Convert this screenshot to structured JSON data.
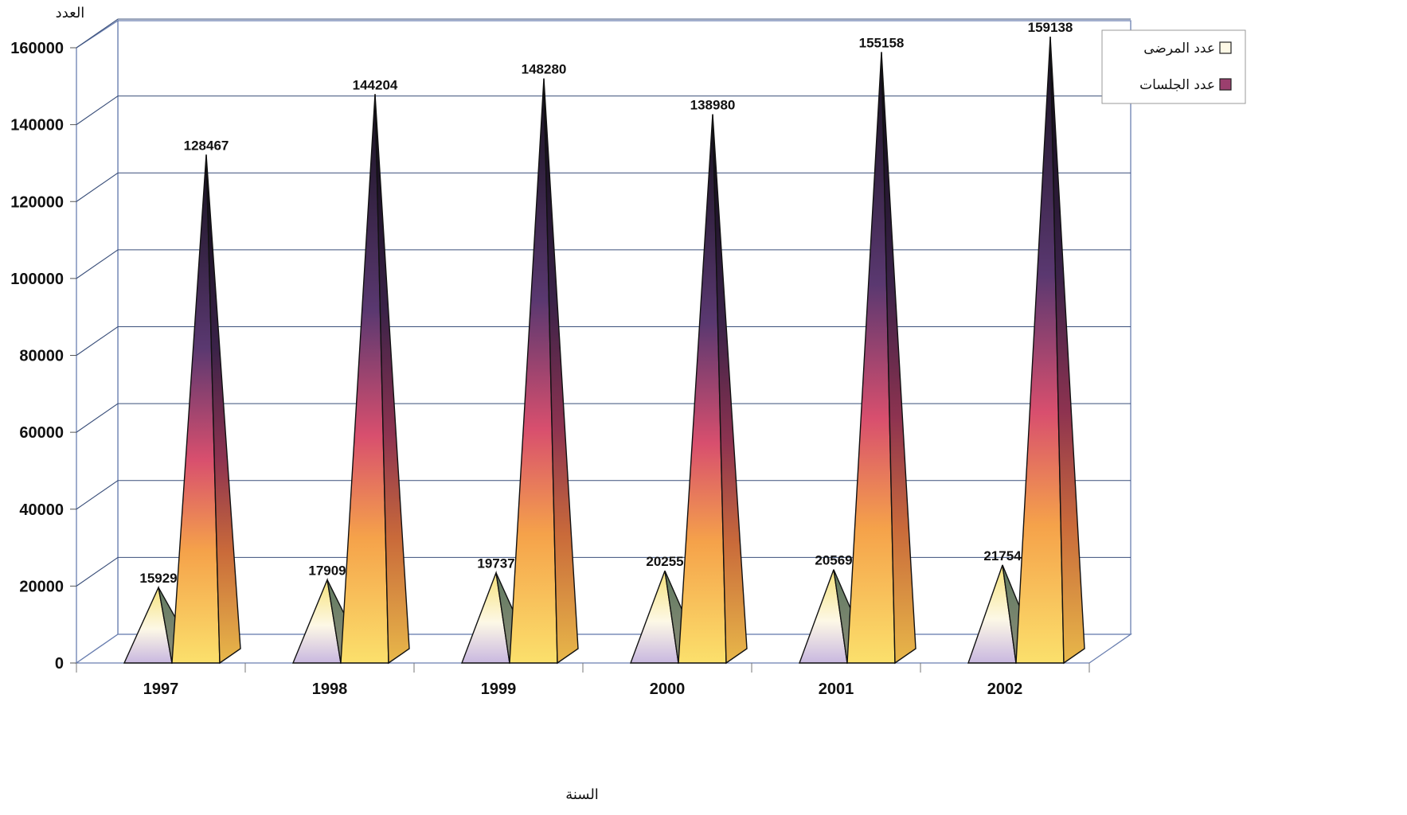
{
  "chart_data": {
    "type": "bar",
    "style": "3d-pyramid",
    "categories": [
      "1997",
      "1998",
      "1999",
      "2000",
      "2001",
      "2002"
    ],
    "series": [
      {
        "name": "عدد المرضى",
        "values": [
          15929,
          17909,
          19737,
          20255,
          20569,
          21754
        ]
      },
      {
        "name": "عدد الجلسات",
        "values": [
          128467,
          144204,
          148280,
          138980,
          155158,
          159138
        ]
      }
    ],
    "data_labels": {
      "s0": [
        "15929",
        "17909",
        "19737",
        "20255",
        "20569",
        "21754"
      ],
      "s1": [
        "128467",
        "144204",
        "148280",
        "138980",
        "155158",
        "159138"
      ]
    },
    "xlabel": "السنة",
    "ylabel": "العدد",
    "ylim": [
      0,
      160000
    ],
    "yticks": [
      0,
      20000,
      40000,
      60000,
      80000,
      100000,
      120000,
      140000,
      160000
    ],
    "ytick_labels": [
      "0",
      "20000",
      "40000",
      "60000",
      "80000",
      "100000",
      "120000",
      "140000",
      "160000"
    ],
    "grid": true,
    "legend_position": "top-right",
    "colors": {
      "patients_light": "#fdf8e6",
      "patients_mid": "#f6e27a",
      "patients_base": "#c9b8e0",
      "sessions_top": "#14101c",
      "sessions_purple": "#5a3870",
      "sessions_pink": "#d84f6e",
      "sessions_orange": "#f5a24a",
      "sessions_yellow": "#fbe06c",
      "grid": "#3a4f7a",
      "wall_edge": "#6a7fb0"
    }
  }
}
